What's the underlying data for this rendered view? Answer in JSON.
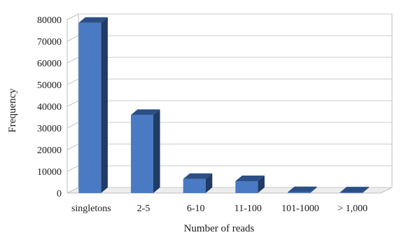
{
  "chart_data": {
    "type": "bar",
    "categories": [
      "singletons",
      "2-5",
      "6-10",
      "11-100",
      "101-1000",
      "> 1,000"
    ],
    "values": [
      78500,
      36000,
      6500,
      5500,
      400,
      300
    ],
    "xlabel": "Number of reads",
    "ylabel": "Frequency",
    "ylim": [
      0,
      80000
    ],
    "yticks": [
      0,
      10000,
      20000,
      30000,
      40000,
      50000,
      60000,
      70000,
      80000
    ],
    "grid": true,
    "style": "3d-column",
    "colors": {
      "front": "#4a7ac4",
      "top": "#2c4f86",
      "side": "#1f3b66"
    }
  }
}
